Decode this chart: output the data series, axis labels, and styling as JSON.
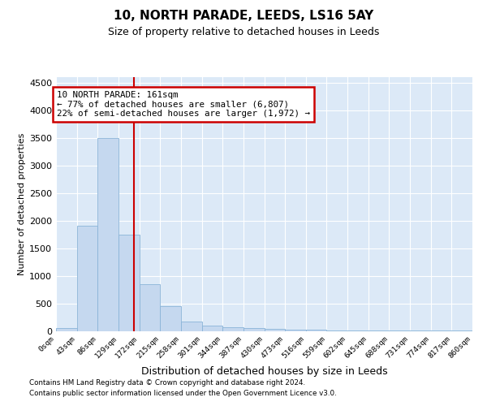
{
  "title": "10, NORTH PARADE, LEEDS, LS16 5AY",
  "subtitle": "Size of property relative to detached houses in Leeds",
  "xlabel": "Distribution of detached houses by size in Leeds",
  "ylabel": "Number of detached properties",
  "footnote1": "Contains HM Land Registry data © Crown copyright and database right 2024.",
  "footnote2": "Contains public sector information licensed under the Open Government Licence v3.0.",
  "annotation_title": "10 NORTH PARADE: 161sqm",
  "annotation_line1": "← 77% of detached houses are smaller (6,807)",
  "annotation_line2": "22% of semi-detached houses are larger (1,972) →",
  "property_size": 161,
  "bin_edges": [
    0,
    43,
    86,
    129,
    172,
    215,
    258,
    301,
    344,
    387,
    430,
    473,
    516,
    559,
    602,
    645,
    688,
    731,
    774,
    817,
    860
  ],
  "bar_values": [
    50,
    1900,
    3500,
    1750,
    850,
    450,
    175,
    100,
    70,
    55,
    40,
    25,
    15,
    10,
    8,
    5,
    3,
    2,
    1,
    1
  ],
  "bar_color": "#c5d8ef",
  "bar_edge_color": "#8ab4d8",
  "vline_color": "#cc0000",
  "annotation_edge_color": "#cc0000",
  "background_color": "#dce9f7",
  "plot_bg_color": "#dce9f7",
  "ylim": [
    0,
    4600
  ],
  "yticks": [
    0,
    500,
    1000,
    1500,
    2000,
    2500,
    3000,
    3500,
    4000,
    4500
  ]
}
